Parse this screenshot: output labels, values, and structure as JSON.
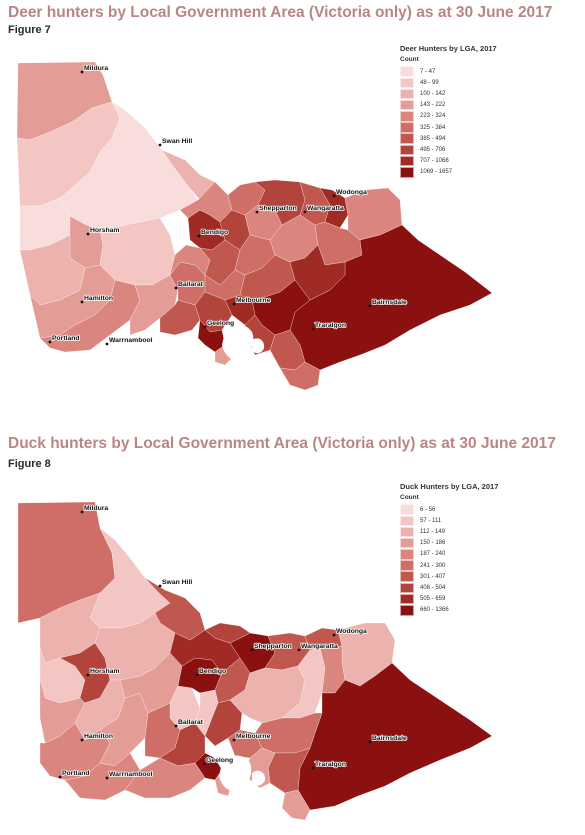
{
  "figures": [
    {
      "title": "Deer hunters by Local Government Area (Victoria only) as at 30 June 2017",
      "label": "Figure 7",
      "legend": {
        "title": "Deer Hunters by LGA, 2017",
        "subtitle": "Count",
        "classes": [
          {
            "range": "7 - 47",
            "color": "#f9dcdc"
          },
          {
            "range": "48 - 99",
            "color": "#f3c6c4"
          },
          {
            "range": "100 - 142",
            "color": "#ecb2ae"
          },
          {
            "range": "143 - 222",
            "color": "#e49c96"
          },
          {
            "range": "223 - 324",
            "color": "#da867f"
          },
          {
            "range": "325 - 384",
            "color": "#ce6e66"
          },
          {
            "range": "385 - 494",
            "color": "#c1584f"
          },
          {
            "range": "495 - 706",
            "color": "#b2443b"
          },
          {
            "range": "707 - 1068",
            "color": "#a02b25"
          },
          {
            "range": "1069 - 1657",
            "color": "#8b1010"
          }
        ]
      },
      "cities": [
        "Mildura",
        "Swan Hill",
        "Shepparton",
        "Wodonga",
        "Wangaratta",
        "Horsham",
        "Bendigo",
        "Ballarat",
        "Hamilton",
        "Melbourne",
        "Bairnsdale",
        "Geelong",
        "Traralgon",
        "Portland",
        "Warrnambool"
      ]
    },
    {
      "title": "Duck hunters by Local Government Area (Victoria only) as at 30 June 2017",
      "label": "Figure 8",
      "legend": {
        "title": "Duck Hunters by LGA, 2017",
        "subtitle": "Count",
        "classes": [
          {
            "range": "6 - 56",
            "color": "#f9dcdc"
          },
          {
            "range": "57 - 111",
            "color": "#f3c6c4"
          },
          {
            "range": "112 - 149",
            "color": "#ecb2ae"
          },
          {
            "range": "150 - 186",
            "color": "#e49c96"
          },
          {
            "range": "187 - 240",
            "color": "#da867f"
          },
          {
            "range": "241 - 300",
            "color": "#ce6e66"
          },
          {
            "range": "301 - 407",
            "color": "#c1584f"
          },
          {
            "range": "408 - 504",
            "color": "#b2443b"
          },
          {
            "range": "505 - 659",
            "color": "#a02b25"
          },
          {
            "range": "660 - 1366",
            "color": "#8b1010"
          }
        ]
      },
      "cities": [
        "Mildura",
        "Swan Hill",
        "Shepparton",
        "Wodonga",
        "Wangaratta",
        "Horsham",
        "Bendigo",
        "Ballarat",
        "Hamilton",
        "Melbourne",
        "Bairnsdale",
        "Geelong",
        "Traralgon",
        "Portland",
        "Warrnambool"
      ]
    }
  ]
}
